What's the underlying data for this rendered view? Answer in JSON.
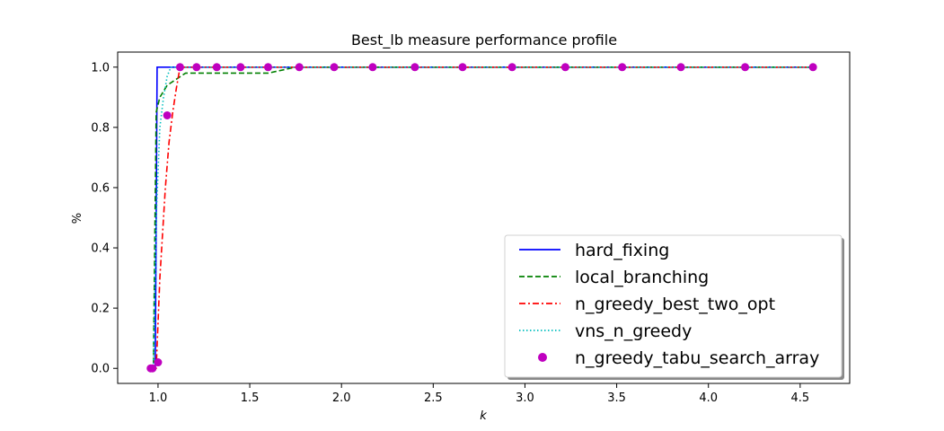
{
  "chart_data": {
    "type": "line",
    "title": "Best_lb measure performance profile",
    "xlabel": "k",
    "ylabel": "%",
    "xlim": [
      0.78,
      4.77
    ],
    "ylim": [
      -0.05,
      1.05
    ],
    "xticks": [
      1.0,
      1.5,
      2.0,
      2.5,
      3.0,
      3.5,
      4.0,
      4.5
    ],
    "xtick_labels": [
      "1.0",
      "1.5",
      "2.0",
      "2.5",
      "3.0",
      "3.5",
      "4.0",
      "4.5"
    ],
    "yticks": [
      0.0,
      0.2,
      0.4,
      0.6,
      0.8,
      1.0
    ],
    "ytick_labels": [
      "0.0",
      "0.2",
      "0.4",
      "0.6",
      "0.8",
      "1.0"
    ],
    "grid": false,
    "legend_position": "lower-right",
    "series": [
      {
        "name": "hard_fixing",
        "color": "#0000ff",
        "style": "solid",
        "x": [
          0.96,
          0.985,
          0.995,
          4.57
        ],
        "y": [
          0.0,
          0.0,
          1.0,
          1.0
        ]
      },
      {
        "name": "local_branching",
        "color": "#008000",
        "style": "dashed",
        "x": [
          0.96,
          0.975,
          0.99,
          1.01,
          1.05,
          1.1,
          1.15,
          1.6,
          1.75,
          4.57
        ],
        "y": [
          0.0,
          0.0,
          0.85,
          0.9,
          0.94,
          0.96,
          0.98,
          0.98,
          1.0,
          1.0
        ]
      },
      {
        "name": "n_greedy_best_two_opt",
        "color": "#ff0000",
        "style": "dashdot",
        "x": [
          0.96,
          0.99,
          1.01,
          1.04,
          1.06,
          1.08,
          1.1,
          1.12,
          4.57
        ],
        "y": [
          0.0,
          0.0,
          0.3,
          0.6,
          0.75,
          0.85,
          0.93,
          1.0,
          1.0
        ]
      },
      {
        "name": "vns_n_greedy",
        "color": "#00bfbf",
        "style": "dotted",
        "x": [
          0.96,
          0.975,
          0.99,
          1.01,
          1.03,
          1.05,
          1.07,
          4.57
        ],
        "y": [
          0.0,
          0.0,
          0.5,
          0.8,
          0.9,
          0.97,
          1.0,
          1.0
        ]
      },
      {
        "name": "n_greedy_tabu_search_array",
        "color": "#bf00bf",
        "style": "markers",
        "x": [
          0.96,
          0.97,
          1.0,
          1.05,
          1.12,
          1.21,
          1.32,
          1.45,
          1.6,
          1.77,
          1.96,
          2.17,
          2.4,
          2.66,
          2.93,
          3.22,
          3.53,
          3.85,
          4.2,
          4.57
        ],
        "y": [
          0.0,
          0.0,
          0.02,
          0.84,
          1.0,
          1.0,
          1.0,
          1.0,
          1.0,
          1.0,
          1.0,
          1.0,
          1.0,
          1.0,
          1.0,
          1.0,
          1.0,
          1.0,
          1.0,
          1.0
        ]
      }
    ]
  }
}
